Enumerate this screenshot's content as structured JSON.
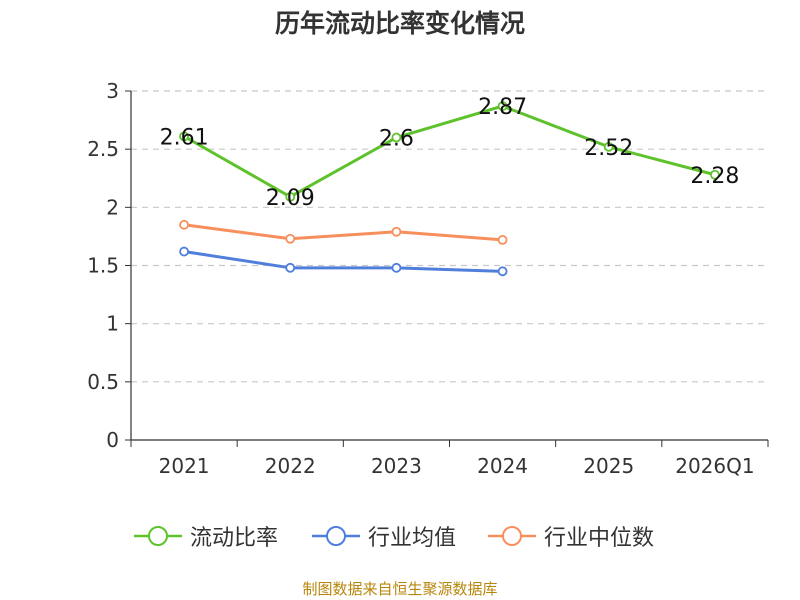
{
  "chart_data": {
    "type": "line",
    "title": "历年流动比率变化情况",
    "categories": [
      "2021",
      "2022",
      "2023",
      "2024",
      "2025",
      "2026Q1"
    ],
    "series": [
      {
        "name": "流动比率",
        "color": "#5ec22b",
        "values": [
          2.61,
          2.09,
          2.6,
          2.87,
          2.52,
          2.28
        ],
        "labels": [
          "2.61",
          "2.09",
          "2.6",
          "2.87",
          "2.52",
          "2.28"
        ]
      },
      {
        "name": "行业均值",
        "color": "#4f7fdb",
        "values": [
          1.62,
          1.48,
          1.48,
          1.45,
          null,
          null
        ]
      },
      {
        "name": "行业中位数",
        "color": "#f78f5c",
        "values": [
          1.85,
          1.73,
          1.79,
          1.72,
          null,
          null
        ]
      }
    ],
    "y_ticks": [
      "0",
      "0.5",
      "1",
      "1.5",
      "2",
      "2.5",
      "3"
    ],
    "ylim": [
      0,
      3
    ],
    "grid": true,
    "legend": "bottom",
    "xlabel": "",
    "ylabel": ""
  },
  "source": "制图数据来自恒生聚源数据库"
}
